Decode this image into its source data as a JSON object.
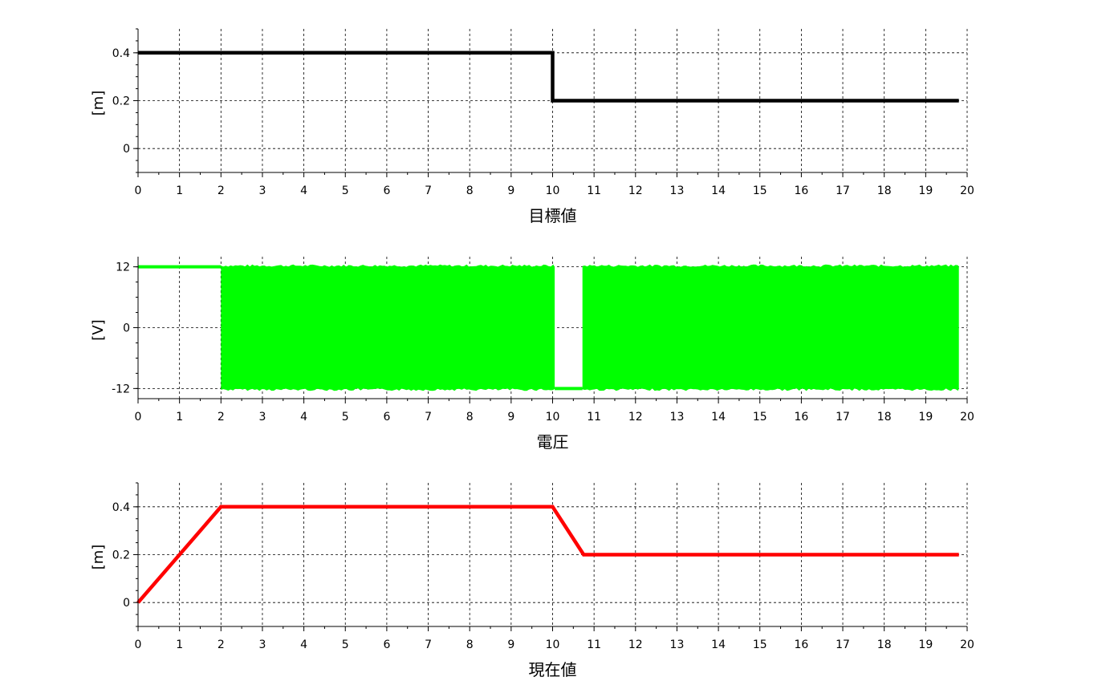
{
  "chart_data": [
    {
      "type": "line",
      "title": "目標値",
      "xlabel": "目標値",
      "ylabel": "[m]",
      "xlim": [
        0,
        20
      ],
      "ylim": [
        -0.1,
        0.5
      ],
      "xticks": [
        "0",
        "1",
        "2",
        "3",
        "4",
        "5",
        "6",
        "7",
        "8",
        "9",
        "10",
        "11",
        "12",
        "13",
        "14",
        "15",
        "16",
        "17",
        "18",
        "19",
        "20"
      ],
      "yticks": [
        {
          "value": 0,
          "label": "0"
        },
        {
          "value": 0.2,
          "label": "0.2"
        },
        {
          "value": 0.4,
          "label": "0.4"
        }
      ],
      "grid": true,
      "series": [
        {
          "color": "#000000",
          "points": [
            [
              0,
              0.4
            ],
            [
              10,
              0.4
            ],
            [
              10,
              0.2
            ],
            [
              19.8,
              0.2
            ]
          ]
        }
      ]
    },
    {
      "type": "area",
      "title": "電圧",
      "xlabel": "電圧",
      "ylabel": "[V]",
      "xlim": [
        0,
        20
      ],
      "ylim": [
        -14,
        14
      ],
      "xticks": [
        "0",
        "1",
        "2",
        "3",
        "4",
        "5",
        "6",
        "7",
        "8",
        "9",
        "10",
        "11",
        "12",
        "13",
        "14",
        "15",
        "16",
        "17",
        "18",
        "19",
        "20"
      ],
      "yticks": [
        {
          "value": -12,
          "label": "-12"
        },
        {
          "value": 0,
          "label": "0"
        },
        {
          "value": 12,
          "label": "12"
        }
      ],
      "grid": true,
      "series": [
        {
          "color": "#00ff00",
          "constant_segments": [
            {
              "x": [
                0,
                2
              ],
              "y": 12
            },
            {
              "x": [
                10.05,
                10.72
              ],
              "y": -12
            }
          ],
          "switching_bands": [
            {
              "x": [
                2,
                10.05
              ],
              "y": [
                -12,
                12
              ]
            },
            {
              "x": [
                10.72,
                19.8
              ],
              "y": [
                -12,
                12
              ]
            }
          ]
        }
      ]
    },
    {
      "type": "line",
      "title": "現在値",
      "xlabel": "現在値",
      "ylabel": "[m]",
      "xlim": [
        0,
        20
      ],
      "ylim": [
        -0.1,
        0.5
      ],
      "xticks": [
        "0",
        "1",
        "2",
        "3",
        "4",
        "5",
        "6",
        "7",
        "8",
        "9",
        "10",
        "11",
        "12",
        "13",
        "14",
        "15",
        "16",
        "17",
        "18",
        "19",
        "20"
      ],
      "yticks": [
        {
          "value": 0,
          "label": "0"
        },
        {
          "value": 0.2,
          "label": "0.2"
        },
        {
          "value": 0.4,
          "label": "0.4"
        }
      ],
      "grid": true,
      "series": [
        {
          "color": "#ff0000",
          "points": [
            [
              0,
              0
            ],
            [
              2,
              0.4
            ],
            [
              10,
              0.4
            ],
            [
              10.75,
              0.2
            ],
            [
              19.8,
              0.2
            ]
          ]
        }
      ]
    }
  ]
}
